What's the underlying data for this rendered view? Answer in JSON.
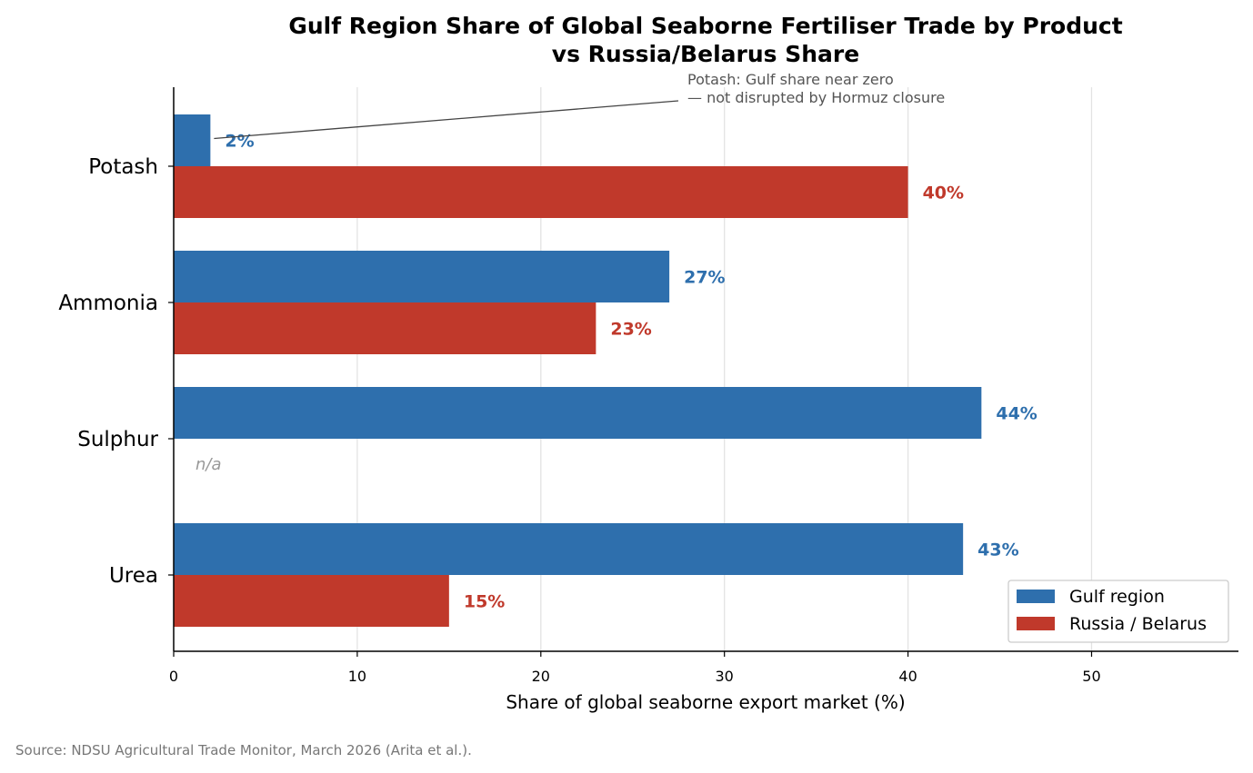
{
  "chart_data": {
    "type": "bar",
    "orientation": "horizontal",
    "title_lines": [
      "Gulf Region Share of Global Seaborne Fertiliser Trade by Product",
      "vs Russia/Belarus Share"
    ],
    "xlabel": "Share of global seaborne export market (%)",
    "ylabel": "",
    "xlim": [
      0,
      58
    ],
    "xticks": [
      0,
      10,
      20,
      30,
      40,
      50
    ],
    "grid": "vertical",
    "categories": [
      "Potash",
      "Ammonia",
      "Sulphur",
      "Urea"
    ],
    "series": [
      {
        "name": "Gulf region",
        "color": "#2e6fad",
        "values": [
          2,
          27,
          44,
          43
        ],
        "labels": [
          "2%",
          "27%",
          "44%",
          "43%"
        ]
      },
      {
        "name": "Russia / Belarus",
        "color": "#c0392b",
        "values": [
          40,
          23,
          null,
          15
        ],
        "labels": [
          "40%",
          "23%",
          "n/a",
          "15%"
        ]
      }
    ],
    "annotation": {
      "category": "Potash",
      "series": "Gulf region",
      "lines": [
        "Potash: Gulf share near zero",
        "— not disrupted by Hormuz closure"
      ]
    },
    "legend_position": "lower-right",
    "source": "Source: NDSU Agricultural Trade Monitor, March 2026 (Arita et al.)."
  }
}
